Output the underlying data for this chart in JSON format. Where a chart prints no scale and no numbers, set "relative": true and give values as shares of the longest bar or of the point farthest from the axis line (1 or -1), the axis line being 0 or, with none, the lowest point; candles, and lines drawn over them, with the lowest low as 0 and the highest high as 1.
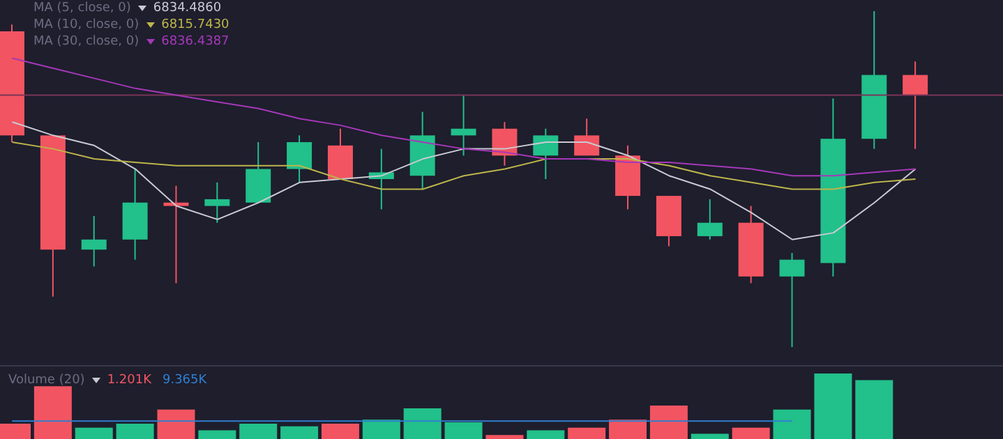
{
  "chart_data": [
    {
      "type": "candlestick",
      "relative": true,
      "tick_labels": false,
      "legend": "top left",
      "categories": [
        null,
        null,
        null,
        null,
        null,
        null,
        null,
        null,
        null,
        null,
        null,
        null,
        null,
        null,
        null,
        null,
        null,
        null,
        null,
        null,
        null,
        null,
        null
      ],
      "ohlc": [
        [
          0.94,
          0.96,
          0.61,
          0.63
        ],
        [
          0.63,
          0.63,
          0.15,
          0.29
        ],
        [
          0.29,
          0.39,
          0.24,
          0.32
        ],
        [
          0.32,
          0.53,
          0.26,
          0.43
        ],
        [
          0.43,
          0.48,
          0.19,
          0.42
        ],
        [
          0.42,
          0.49,
          0.37,
          0.44
        ],
        [
          0.43,
          0.61,
          0.43,
          0.53
        ],
        [
          0.53,
          0.63,
          0.49,
          0.61
        ],
        [
          0.6,
          0.65,
          0.5,
          0.5
        ],
        [
          0.5,
          0.59,
          0.41,
          0.52
        ],
        [
          0.51,
          0.7,
          0.47,
          0.63
        ],
        [
          0.63,
          0.75,
          0.57,
          0.65
        ],
        [
          0.65,
          0.67,
          0.54,
          0.57
        ],
        [
          0.57,
          0.65,
          0.5,
          0.63
        ],
        [
          0.63,
          0.68,
          0.57,
          0.57
        ],
        [
          0.57,
          0.6,
          0.41,
          0.45
        ],
        [
          0.45,
          0.45,
          0.3,
          0.33
        ],
        [
          0.33,
          0.44,
          0.32,
          0.37
        ],
        [
          0.37,
          0.42,
          0.19,
          0.21
        ],
        [
          0.21,
          0.28,
          0,
          0.26
        ],
        [
          0.25,
          0.74,
          0.21,
          0.62
        ],
        [
          0.62,
          1,
          0.59,
          0.81
        ],
        [
          0.81,
          0.85,
          0.59,
          0.75
        ]
      ],
      "colors": [
        "#f25561",
        "#f25561",
        "#22c08a",
        "#22c08a",
        "#f25561",
        "#22c08a",
        "#22c08a",
        "#22c08a",
        "#f25561",
        "#22c08a",
        "#22c08a",
        "#22c08a",
        "#f25561",
        "#22c08a",
        "#f25561",
        "#f25561",
        "#f25561",
        "#22c08a",
        "#f25561",
        "#22c08a",
        "#22c08a",
        "#22c08a",
        "#f25561"
      ],
      "series": [
        {
          "type": "line",
          "name": "MA (5, close, 0)",
          "color": "#c9cad3",
          "values": [
            0.67,
            0.63,
            0.6,
            0.53,
            0.42,
            0.38,
            0.43,
            0.49,
            0.5,
            0.51,
            0.56,
            0.59,
            0.59,
            0.61,
            0.61,
            0.57,
            0.51,
            0.47,
            0.4,
            0.32,
            0.34,
            0.43,
            0.53
          ]
        },
        {
          "type": "line",
          "name": "MA (10, close, 0)",
          "color": "#bdb54a",
          "values": [
            0.61,
            0.59,
            0.56,
            0.55,
            0.54,
            0.54,
            0.54,
            0.54,
            0.5,
            0.47,
            0.47,
            0.51,
            0.53,
            0.56,
            0.56,
            0.56,
            0.54,
            0.51,
            0.49,
            0.47,
            0.47,
            0.49,
            0.5
          ]
        },
        {
          "type": "line",
          "name": "MA (30, close, 0)",
          "color": "#a638b8",
          "values": [
            0.86,
            0.83,
            0.8,
            0.77,
            0.75,
            0.73,
            0.71,
            0.68,
            0.66,
            0.63,
            0.61,
            0.59,
            0.58,
            0.56,
            0.56,
            0.55,
            0.55,
            0.54,
            0.53,
            0.51,
            0.51,
            0.52,
            0.53
          ]
        }
      ],
      "annotations": [
        "6834.4860",
        "6815.7430",
        "6836.4387"
      ],
      "ref_lines": [
        {
          "axis": "y",
          "value": 0.75,
          "color": "#7a3458"
        }
      ]
    },
    {
      "type": "bar",
      "relative": true,
      "tick_labels": false,
      "categories": [
        null,
        null,
        null,
        null,
        null,
        null,
        null,
        null,
        null,
        null,
        null,
        null,
        null,
        null,
        null,
        null,
        null,
        null,
        null,
        null,
        null,
        null,
        null
      ],
      "series": [
        {
          "type": "bar",
          "colors": [
            "#f25561",
            "#f25561",
            "#22c08a",
            "#22c08a",
            "#f25561",
            "#22c08a",
            "#22c08a",
            "#22c08a",
            "#f25561",
            "#22c08a",
            "#22c08a",
            "#22c08a",
            "#f25561",
            "#22c08a",
            "#f25561",
            "#f25561",
            "#f25561",
            "#22c08a",
            "#f25561",
            "#22c08a",
            "#22c08a",
            "#22c08a",
            "#f25561"
          ],
          "values": [
            0.25,
            0.81,
            0.19,
            0.25,
            0.46,
            0.15,
            0.25,
            0.21,
            0.25,
            0.31,
            0.48,
            0.27,
            0.08,
            0.15,
            0.19,
            0.31,
            0.52,
            0.1,
            0.19,
            0.46,
            1,
            0.9,
            null
          ]
        },
        {
          "type": "line",
          "color": "#2f7fd0",
          "values": [
            0.29,
            0.29,
            0.29,
            0.29,
            0.29,
            0.29,
            0.29,
            0.29,
            0.29,
            0.29,
            0.29,
            0.29,
            0.29,
            0.29,
            0.29,
            0.29,
            0.29,
            0.29,
            0.29,
            0.29,
            null,
            null,
            null
          ]
        }
      ],
      "annotations": [
        "Volume (20)",
        "1.201K",
        "9.365K"
      ]
    }
  ]
}
